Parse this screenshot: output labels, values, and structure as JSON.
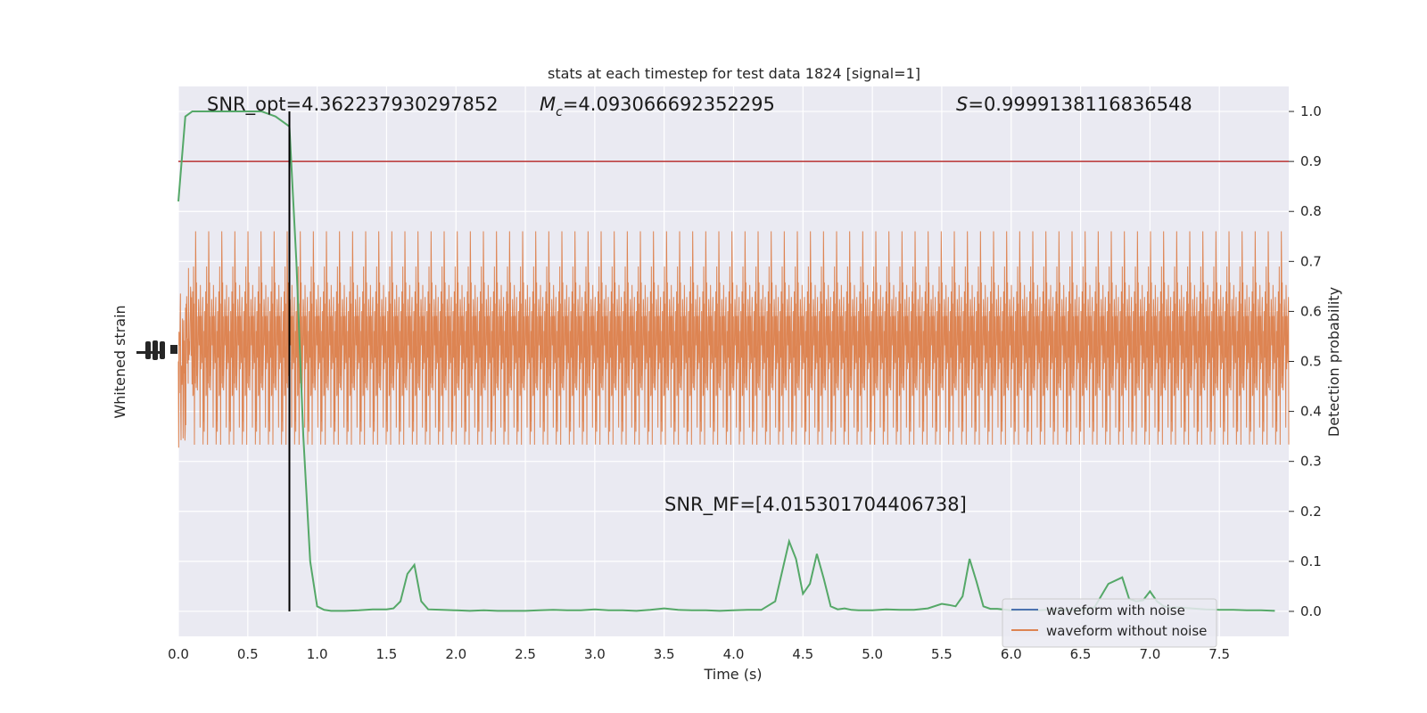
{
  "chart_data": {
    "type": "line",
    "title": "stats at each timestep for test data 1824 [signal=1]",
    "xlabel": "Time (s)",
    "ylabel_left": "Whitened strain",
    "ylabel_right": "Detection probability",
    "xlim": [
      0.0,
      8.0
    ],
    "ylim_right": [
      -0.05,
      1.05
    ],
    "x_ticks": [
      "0.0",
      "0.5",
      "1.0",
      "1.5",
      "2.0",
      "2.5",
      "3.0",
      "3.5",
      "4.0",
      "4.5",
      "5.0",
      "5.5",
      "6.0",
      "6.5",
      "7.0",
      "7.5"
    ],
    "x_tick_values": [
      0.0,
      0.5,
      1.0,
      1.5,
      2.0,
      2.5,
      3.0,
      3.5,
      4.0,
      4.5,
      5.0,
      5.5,
      6.0,
      6.5,
      7.0,
      7.5
    ],
    "y_right_ticks": [
      "0.0",
      "0.1",
      "0.2",
      "0.3",
      "0.4",
      "0.5",
      "0.6",
      "0.7",
      "0.8",
      "0.9",
      "1.0"
    ],
    "y_right_tick_values": [
      0.0,
      0.1,
      0.2,
      0.3,
      0.4,
      0.5,
      0.6,
      0.7,
      0.8,
      0.9,
      1.0
    ],
    "grid": true,
    "legend_position": "bottom-right",
    "annotations": {
      "snr_opt": "SNR_opt=4.362237930297852",
      "mc_symbol": "M",
      "mc_sub": "c",
      "mc_value": "=4.093066692352295",
      "s_symbol": "S",
      "s_value": "=0.9999138116836548",
      "snr_mf": "SNR_MF=[4.015301704406738]"
    },
    "threshold": {
      "value": 0.9,
      "color": "#b83232"
    },
    "marker_time": 0.8,
    "series": [
      {
        "name": "waveform with noise",
        "color": "#4c72b0"
      },
      {
        "name": "waveform without noise",
        "color": "#dd8452"
      }
    ],
    "probability": {
      "color": "#55a868",
      "x": [
        0.0,
        0.05,
        0.1,
        0.2,
        0.3,
        0.4,
        0.5,
        0.6,
        0.7,
        0.8,
        0.85,
        0.9,
        0.95,
        1.0,
        1.05,
        1.1,
        1.2,
        1.3,
        1.4,
        1.5,
        1.55,
        1.6,
        1.65,
        1.7,
        1.75,
        1.8,
        1.9,
        2.0,
        2.1,
        2.2,
        2.3,
        2.4,
        2.5,
        2.6,
        2.7,
        2.8,
        2.9,
        3.0,
        3.1,
        3.2,
        3.3,
        3.4,
        3.5,
        3.6,
        3.7,
        3.8,
        3.9,
        4.0,
        4.1,
        4.2,
        4.3,
        4.35,
        4.4,
        4.45,
        4.5,
        4.55,
        4.6,
        4.65,
        4.7,
        4.75,
        4.8,
        4.85,
        4.9,
        5.0,
        5.1,
        5.2,
        5.3,
        5.4,
        5.5,
        5.55,
        5.6,
        5.65,
        5.7,
        5.75,
        5.8,
        5.85,
        5.9,
        6.0,
        6.1,
        6.2,
        6.3,
        6.4,
        6.5,
        6.6,
        6.7,
        6.8,
        6.85,
        6.9,
        6.95,
        7.0,
        7.05,
        7.1,
        7.15,
        7.2,
        7.3,
        7.4,
        7.5,
        7.6,
        7.7,
        7.8,
        7.9
      ],
      "y": [
        0.82,
        0.99,
        1.0,
        1.0,
        1.0,
        1.0,
        1.0,
        1.0,
        0.99,
        0.97,
        0.7,
        0.35,
        0.1,
        0.01,
        0.003,
        0.001,
        0.001,
        0.002,
        0.004,
        0.004,
        0.006,
        0.02,
        0.075,
        0.093,
        0.02,
        0.004,
        0.003,
        0.002,
        0.001,
        0.002,
        0.001,
        0.001,
        0.001,
        0.002,
        0.003,
        0.002,
        0.002,
        0.004,
        0.002,
        0.002,
        0.001,
        0.003,
        0.006,
        0.003,
        0.002,
        0.002,
        0.001,
        0.002,
        0.003,
        0.003,
        0.02,
        0.08,
        0.14,
        0.105,
        0.035,
        0.055,
        0.115,
        0.065,
        0.01,
        0.004,
        0.006,
        0.003,
        0.002,
        0.002,
        0.004,
        0.003,
        0.003,
        0.006,
        0.015,
        0.013,
        0.01,
        0.03,
        0.105,
        0.06,
        0.01,
        0.005,
        0.005,
        0.002,
        0.003,
        0.002,
        0.004,
        0.003,
        0.003,
        0.008,
        0.055,
        0.068,
        0.025,
        0.02,
        0.022,
        0.04,
        0.02,
        0.01,
        0.007,
        0.008,
        0.006,
        0.004,
        0.003,
        0.003,
        0.002,
        0.002,
        0.001
      ]
    }
  }
}
